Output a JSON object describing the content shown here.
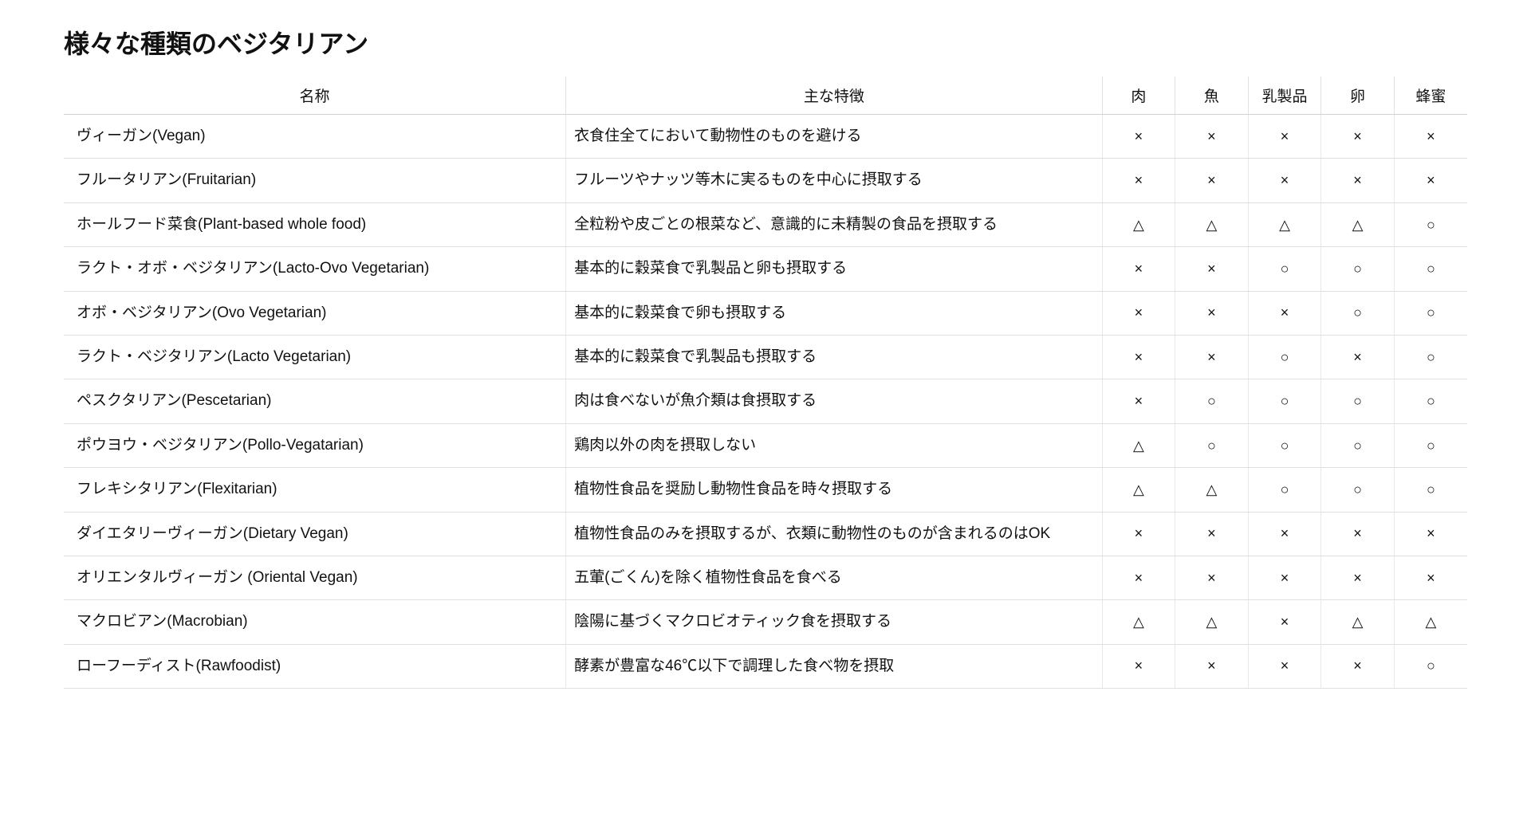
{
  "title": "様々な種類のベジタリアン",
  "table": {
    "columns": [
      "名称",
      "主な特徴",
      "肉",
      "魚",
      "乳製品",
      "卵",
      "蜂蜜"
    ],
    "rows": [
      {
        "name": "ヴィーガン(Vegan)",
        "desc": "衣食住全てにおいて動物性のものを避ける",
        "marks": [
          "×",
          "×",
          "×",
          "×",
          "×"
        ]
      },
      {
        "name": "フルータリアン(Fruitarian)",
        "desc": "フルーツやナッツ等木に実るものを中心に摂取する",
        "marks": [
          "×",
          "×",
          "×",
          "×",
          "×"
        ]
      },
      {
        "name": "ホールフード菜食(Plant-based whole food)",
        "desc": "全粒粉や皮ごとの根菜など、意識的に未精製の食品を摂取する",
        "marks": [
          "△",
          "△",
          "△",
          "△",
          "○"
        ]
      },
      {
        "name": "ラクト・オボ・ベジタリアン(Lacto-Ovo Vegetarian)",
        "desc": "基本的に穀菜食で乳製品と卵も摂取する",
        "marks": [
          "×",
          "×",
          "○",
          "○",
          "○"
        ]
      },
      {
        "name": "オボ・ベジタリアン(Ovo Vegetarian)",
        "desc": "基本的に穀菜食で卵も摂取する",
        "marks": [
          "×",
          "×",
          "×",
          "○",
          "○"
        ]
      },
      {
        "name": "ラクト・ベジタリアン(Lacto Vegetarian)",
        "desc": "基本的に穀菜食で乳製品も摂取する",
        "marks": [
          "×",
          "×",
          "○",
          "×",
          "○"
        ]
      },
      {
        "name": "ペスクタリアン(Pescetarian)",
        "desc": "肉は食べないが魚介類は食摂取する",
        "marks": [
          "×",
          "○",
          "○",
          "○",
          "○"
        ]
      },
      {
        "name": "ポウヨウ・ベジタリアン(Pollo-Vegatarian)",
        "desc": "鶏肉以外の肉を摂取しない",
        "marks": [
          "△",
          "○",
          "○",
          "○",
          "○"
        ]
      },
      {
        "name": "フレキシタリアン(Flexitarian)",
        "desc": "植物性食品を奨励し動物性食品を時々摂取する",
        "marks": [
          "△",
          "△",
          "○",
          "○",
          "○"
        ]
      },
      {
        "name": "ダイエタリーヴィーガン(Dietary Vegan)",
        "desc": "植物性食品のみを摂取するが、衣類に動物性のものが含まれるのはOK",
        "marks": [
          "×",
          "×",
          "×",
          "×",
          "×"
        ]
      },
      {
        "name": "オリエンタルヴィーガン (Oriental Vegan)",
        "desc": "五葷(ごくん)を除く植物性食品を食べる",
        "marks": [
          "×",
          "×",
          "×",
          "×",
          "×"
        ]
      },
      {
        "name": "マクロビアン(Macrobian)",
        "desc": "陰陽に基づくマクロビオティック食を摂取する",
        "marks": [
          "△",
          "△",
          "×",
          "△",
          "△"
        ]
      },
      {
        "name": "ローフーディスト(Rawfoodist)",
        "desc": "酵素が豊富な46℃以下で調理した食べ物を摂取",
        "marks": [
          "×",
          "×",
          "×",
          "×",
          "○"
        ]
      }
    ]
  },
  "styling": {
    "heading_fontsize": 32,
    "body_fontsize": 19,
    "border_color": "#e0e0e0",
    "header_border_color": "#d0d0d0",
    "background": "#ffffff",
    "text_color": "#111111",
    "column_widths": {
      "name": 440,
      "desc": 470,
      "mark": 64
    }
  }
}
